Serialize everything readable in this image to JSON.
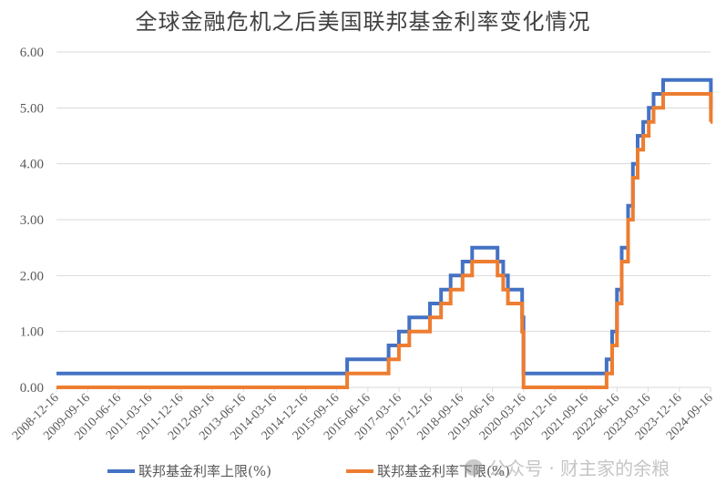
{
  "chart_data": {
    "type": "line",
    "subtype": "step",
    "title": "全球金融危机之后美国联邦基金利率变化情况",
    "xlabel": "",
    "ylabel": "",
    "ylim": [
      0,
      6
    ],
    "yticks": [
      "0.00",
      "1.00",
      "2.00",
      "3.00",
      "4.00",
      "5.00",
      "6.00"
    ],
    "grid": true,
    "legend_position": "bottom",
    "categories": [
      "2008-12-16",
      "2009-09-16",
      "2010-06-16",
      "2011-03-16",
      "2011-12-16",
      "2012-09-16",
      "2013-06-16",
      "2014-03-16",
      "2014-12-16",
      "2015-09-16",
      "2016-06-16",
      "2017-03-16",
      "2017-12-16",
      "2018-09-16",
      "2019-06-16",
      "2020-03-16",
      "2020-12-16",
      "2021-09-16",
      "2022-06-16",
      "2023-03-16",
      "2023-12-16",
      "2024-09-16"
    ],
    "series": [
      {
        "name": "联邦基金利率上限(%)",
        "color": "#4472C4",
        "steps": [
          {
            "from": "2008-12-16",
            "value": 0.25
          },
          {
            "from": "2015-12-17",
            "value": 0.5
          },
          {
            "from": "2016-12-15",
            "value": 0.75
          },
          {
            "from": "2017-03-16",
            "value": 1.0
          },
          {
            "from": "2017-06-15",
            "value": 1.25
          },
          {
            "from": "2017-12-14",
            "value": 1.5
          },
          {
            "from": "2018-03-22",
            "value": 1.75
          },
          {
            "from": "2018-06-14",
            "value": 2.0
          },
          {
            "from": "2018-09-27",
            "value": 2.25
          },
          {
            "from": "2018-12-20",
            "value": 2.5
          },
          {
            "from": "2019-08-01",
            "value": 2.25
          },
          {
            "from": "2019-09-19",
            "value": 2.0
          },
          {
            "from": "2019-10-31",
            "value": 1.75
          },
          {
            "from": "2020-03-04",
            "value": 1.25
          },
          {
            "from": "2020-03-16",
            "value": 0.25
          },
          {
            "from": "2022-03-17",
            "value": 0.5
          },
          {
            "from": "2022-05-05",
            "value": 1.0
          },
          {
            "from": "2022-06-16",
            "value": 1.75
          },
          {
            "from": "2022-07-28",
            "value": 2.5
          },
          {
            "from": "2022-09-22",
            "value": 3.25
          },
          {
            "from": "2022-11-03",
            "value": 4.0
          },
          {
            "from": "2022-12-15",
            "value": 4.5
          },
          {
            "from": "2023-02-02",
            "value": 4.75
          },
          {
            "from": "2023-03-23",
            "value": 5.0
          },
          {
            "from": "2023-05-04",
            "value": 5.25
          },
          {
            "from": "2023-07-27",
            "value": 5.5
          },
          {
            "from": "2024-09-19",
            "value": 5.0
          }
        ]
      },
      {
        "name": "联邦基金利率下限(%)",
        "color": "#ED7D31",
        "steps": [
          {
            "from": "2008-12-16",
            "value": 0.0
          },
          {
            "from": "2015-12-17",
            "value": 0.25
          },
          {
            "from": "2016-12-15",
            "value": 0.5
          },
          {
            "from": "2017-03-16",
            "value": 0.75
          },
          {
            "from": "2017-06-15",
            "value": 1.0
          },
          {
            "from": "2017-12-14",
            "value": 1.25
          },
          {
            "from": "2018-03-22",
            "value": 1.5
          },
          {
            "from": "2018-06-14",
            "value": 1.75
          },
          {
            "from": "2018-09-27",
            "value": 2.0
          },
          {
            "from": "2018-12-20",
            "value": 2.25
          },
          {
            "from": "2019-08-01",
            "value": 2.0
          },
          {
            "from": "2019-09-19",
            "value": 1.75
          },
          {
            "from": "2019-10-31",
            "value": 1.5
          },
          {
            "from": "2020-03-04",
            "value": 1.0
          },
          {
            "from": "2020-03-16",
            "value": 0.0
          },
          {
            "from": "2022-03-17",
            "value": 0.25
          },
          {
            "from": "2022-05-05",
            "value": 0.75
          },
          {
            "from": "2022-06-16",
            "value": 1.5
          },
          {
            "from": "2022-07-28",
            "value": 2.25
          },
          {
            "from": "2022-09-22",
            "value": 3.0
          },
          {
            "from": "2022-11-03",
            "value": 3.75
          },
          {
            "from": "2022-12-15",
            "value": 4.25
          },
          {
            "from": "2023-02-02",
            "value": 4.5
          },
          {
            "from": "2023-03-23",
            "value": 4.75
          },
          {
            "from": "2023-05-04",
            "value": 5.0
          },
          {
            "from": "2023-07-27",
            "value": 5.25
          },
          {
            "from": "2024-09-19",
            "value": 4.75
          }
        ]
      }
    ]
  },
  "legend": {
    "upper_label": "联邦基金利率上限(%)",
    "lower_label": "联邦基金利率下限(%)"
  },
  "watermark": {
    "text": "公众号 · 财主家的余粮"
  }
}
